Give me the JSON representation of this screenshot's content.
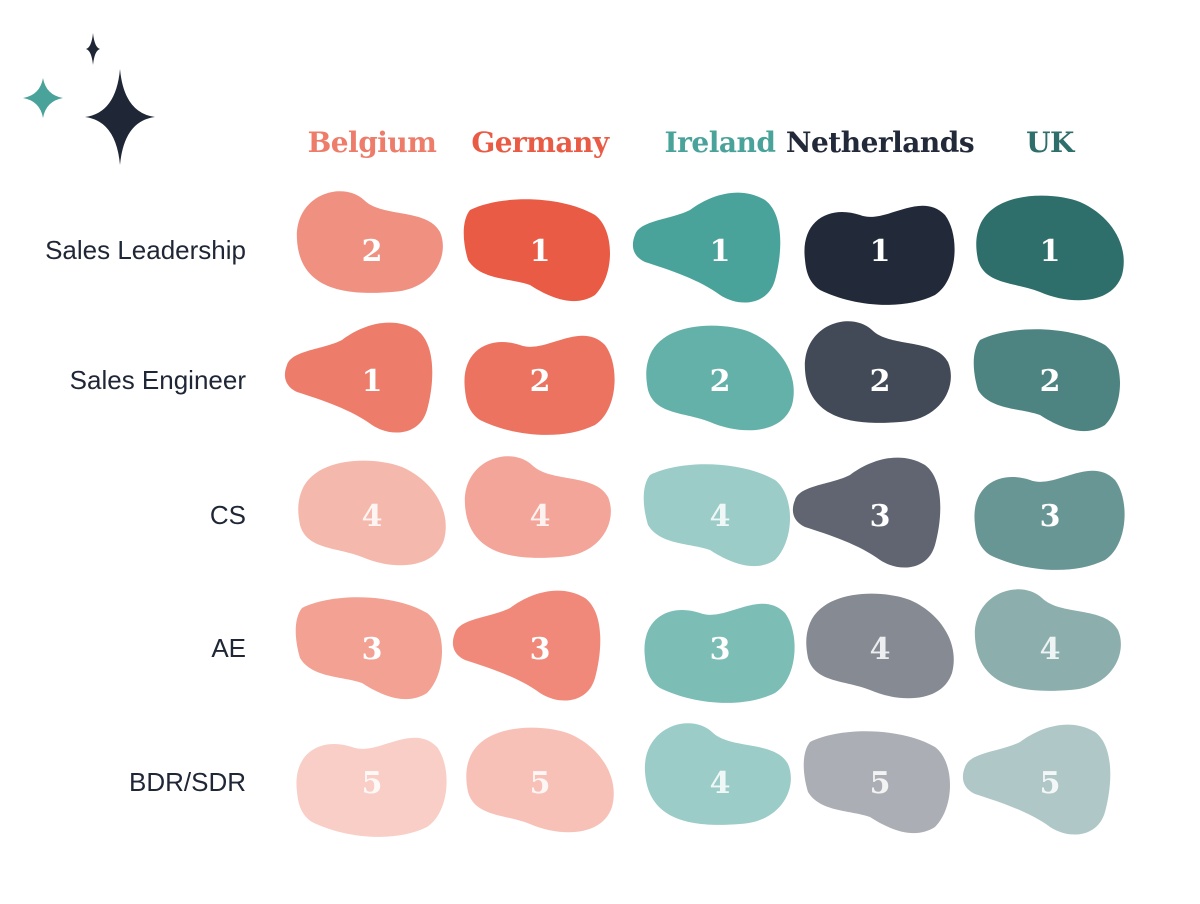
{
  "chart_data": {
    "type": "heatmap",
    "columns": [
      {
        "name": "Belgium",
        "color": "#ed7d6a"
      },
      {
        "name": "Germany",
        "color": "#ea5b45"
      },
      {
        "name": "Ireland",
        "color": "#49a39a"
      },
      {
        "name": "Netherlands",
        "color": "#222a3a"
      },
      {
        "name": "UK",
        "color": "#2e6e6b"
      }
    ],
    "rows": [
      "Sales Leadership",
      "Sales Engineer",
      "CS",
      "AE",
      "BDR/SDR"
    ],
    "values": [
      [
        2,
        1,
        1,
        1,
        1
      ],
      [
        1,
        2,
        2,
        2,
        2
      ],
      [
        4,
        4,
        4,
        3,
        3
      ],
      [
        3,
        3,
        3,
        4,
        4
      ],
      [
        5,
        5,
        4,
        5,
        5
      ]
    ],
    "scale": "rank, 1 = darkest shade"
  },
  "decor": {
    "sparkle_colors": [
      "#1f2636",
      "#49a39a",
      "#1f2636"
    ],
    "icons": [
      "sparkle-small-icon",
      "sparkle-teal-icon",
      "sparkle-large-icon"
    ]
  }
}
